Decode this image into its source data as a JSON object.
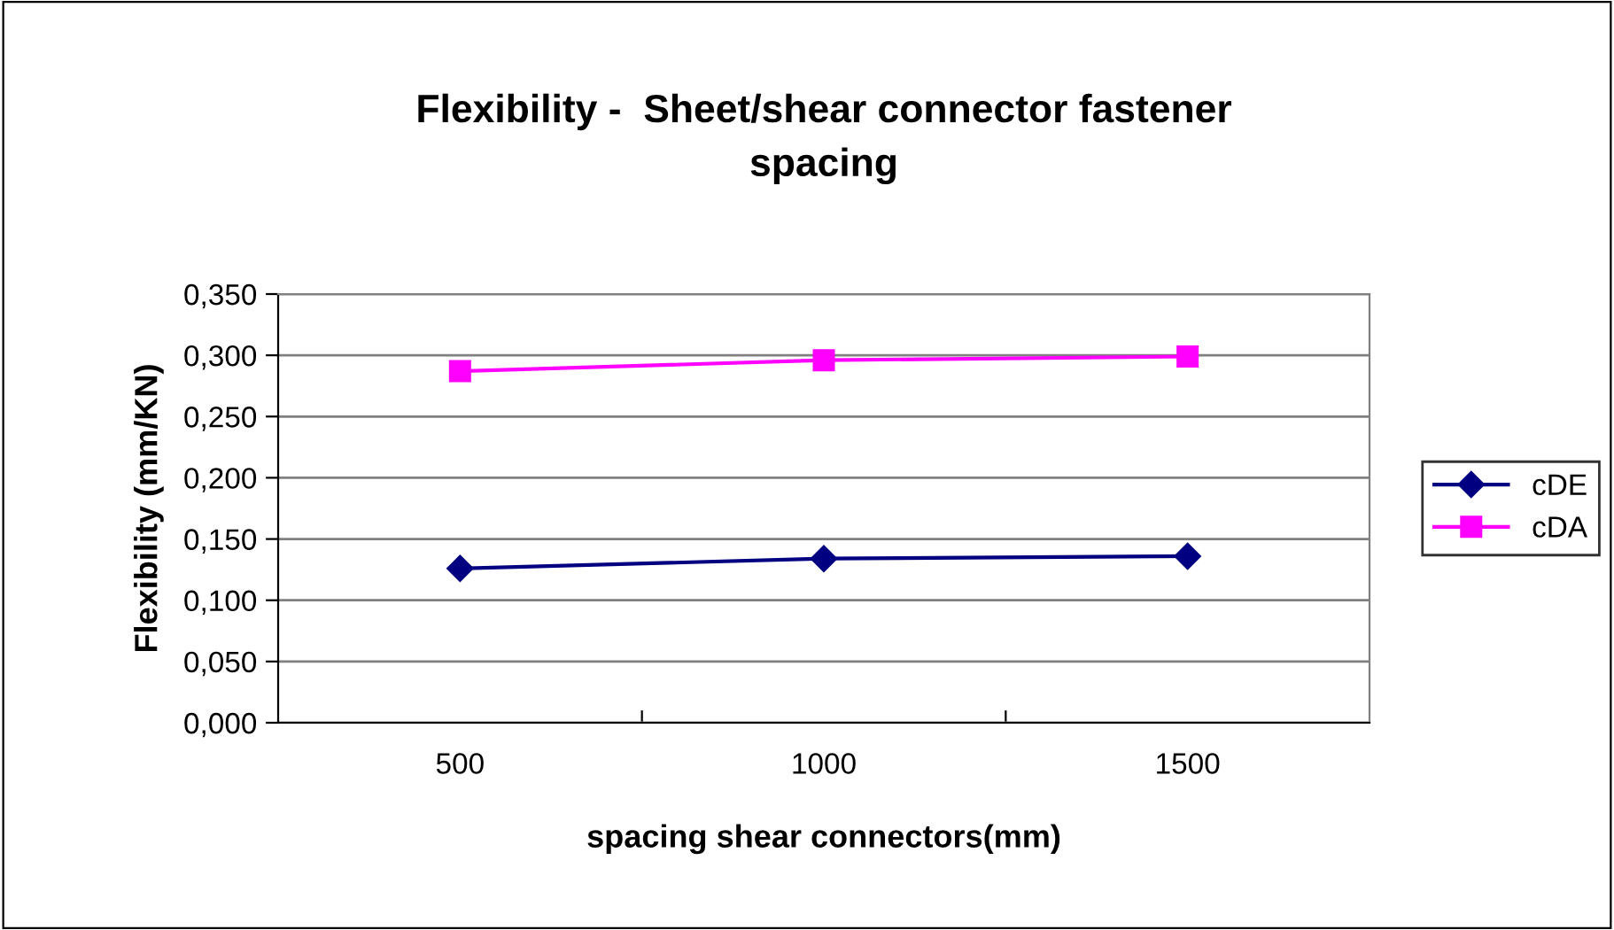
{
  "chart_data": {
    "type": "line",
    "title": "Flexibility -  Sheet/shear connector fastener\nspacing",
    "xlabel": "spacing shear connectors(mm)",
    "ylabel": "Flexibility (mm/KN)",
    "categories": [
      "500",
      "1000",
      "1500"
    ],
    "series": [
      {
        "name": "cDE",
        "color": "#000080",
        "marker": "diamond",
        "values": [
          0.126,
          0.134,
          0.136
        ]
      },
      {
        "name": "cDA",
        "color": "#ff00ff",
        "marker": "square",
        "values": [
          0.287,
          0.296,
          0.299
        ]
      }
    ],
    "ylim": [
      0,
      0.35
    ],
    "yticks": [
      {
        "value": 0,
        "label": "0,000"
      },
      {
        "value": 0.05,
        "label": "0,050"
      },
      {
        "value": 0.1,
        "label": "0,100"
      },
      {
        "value": 0.15,
        "label": "0,150"
      },
      {
        "value": 0.2,
        "label": "0,200"
      },
      {
        "value": 0.25,
        "label": "0,250"
      },
      {
        "value": 0.3,
        "label": "0,300"
      },
      {
        "value": 0.35,
        "label": "0,350"
      }
    ],
    "grid": "y",
    "legend": "right"
  }
}
